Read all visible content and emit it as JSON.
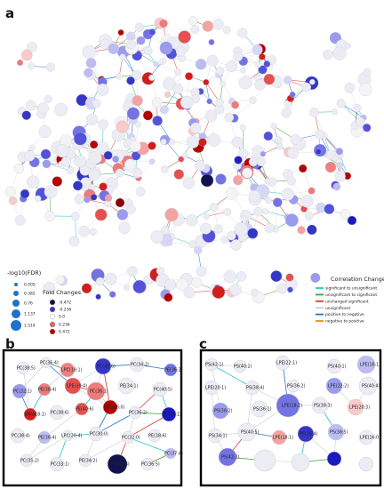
{
  "panels": {
    "a": "a",
    "b": "b",
    "c": "c"
  },
  "legend_fdr": {
    "title": "-log10(FDR)",
    "items": [
      "0.005",
      "0.382",
      "0.76",
      "1.137",
      "1.514"
    ],
    "color": "#1e73c8"
  },
  "legend_fold": {
    "title": "Fold Changes",
    "items": [
      {
        "label": "-0.472",
        "color": "#12124f"
      },
      {
        "label": "-0.236",
        "color": "#3434c8"
      },
      {
        "label": "0.0",
        "color": "#ffffff"
      },
      {
        "label": "0.236",
        "color": "#e06060"
      },
      {
        "label": "0.472",
        "color": "#b00000"
      }
    ]
  },
  "legend_corr": {
    "title": "Correlation Changes",
    "items": [
      {
        "label": "significant to unsignificant",
        "color": "#27c4c4"
      },
      {
        "label": "unsignificant to significant",
        "color": "#3aa03a"
      },
      {
        "label": "unchanged significant",
        "color": "#d63a3a"
      },
      {
        "label": "unsignificant",
        "color": "#cccccc"
      },
      {
        "label": "positive to negative",
        "color": "#2b6fd4"
      },
      {
        "label": "negative to positive",
        "color": "#f08a1a"
      }
    ]
  },
  "panel_b_labels": [
    "PC(38:5)",
    "PC(36:4)",
    "LPC(18:1)",
    "PC(40:6)",
    "PC(34:2)",
    "PE(36:2)",
    "PC(32:1)",
    "PE(38:4)",
    "LPE(20:4)",
    "PC(36:1)",
    "PE(34:1)",
    "PC(40:5)",
    "SM(d18:1)",
    "PC(38:6)",
    "PE(40:6)",
    "LPC(16:0)",
    "PC(36:2)",
    "PC(34:1)",
    "PC(38:4)",
    "PE(36:4)",
    "LPC(20:4)",
    "PC(30:0)",
    "PC(32:0)",
    "PE(38:6)",
    "PC(35:2)",
    "PC(33:1)",
    "PE(34:2)",
    "PC(40:4)",
    "PC(36:5)",
    "PC(37:4)"
  ],
  "panel_c_labels": [
    "PS(42:1)",
    "PS(40:2)",
    "LPE(22:1)",
    "PS(40:1)",
    "LPE(16:1)",
    "LPE(20:1)",
    "PS(38:4)",
    "PS(36:2)",
    "LPE(22:2)",
    "PS(40:4)",
    "PS(38:2)",
    "PS(36:1)",
    "LPE(18:2)",
    "PS(38:3)",
    "LPE(20:3)",
    "PS(34:1)",
    "PS(40:5)",
    "LPE(18:1)",
    "PS(36:4)",
    "PS(38:5)",
    "LPE(16:0)",
    "PS(42:2)"
  ]
}
